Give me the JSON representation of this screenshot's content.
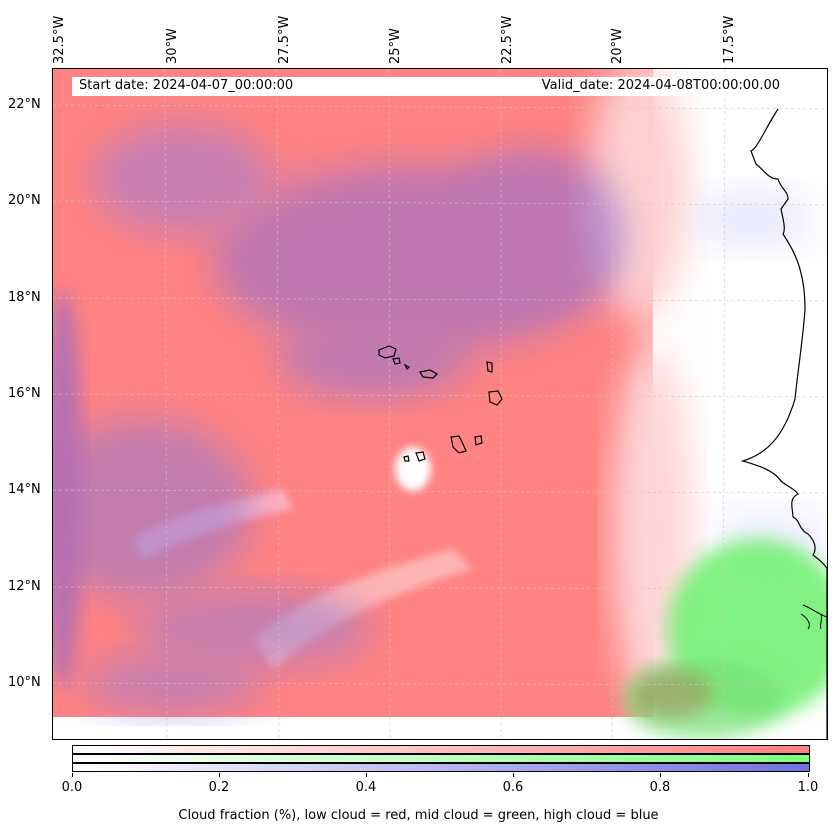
{
  "map": {
    "start_date": "Start date: 2024-04-07_00:00:00",
    "valid_date": "Valid_date: 2024-04-08T00:00:00.00",
    "lon_ticks": [
      "32.5°W",
      "30°W",
      "27.5°W",
      "25°W",
      "22.5°W",
      "20°W",
      "17.5°W"
    ],
    "lat_ticks": [
      "22°N",
      "20°N",
      "18°N",
      "16°N",
      "14°N",
      "12°N",
      "10°N"
    ],
    "colors": {
      "low_cloud": "#ff8080",
      "mid_cloud": "#80ff80",
      "high_cloud": "#8080ff",
      "coastline": "#000000"
    }
  },
  "colorbar": {
    "ticks": [
      "0.0",
      "0.2",
      "0.4",
      "0.6",
      "0.8",
      "1.0"
    ],
    "label": "Cloud fraction (%), low cloud = red, mid cloud = green, high cloud = blue"
  }
}
